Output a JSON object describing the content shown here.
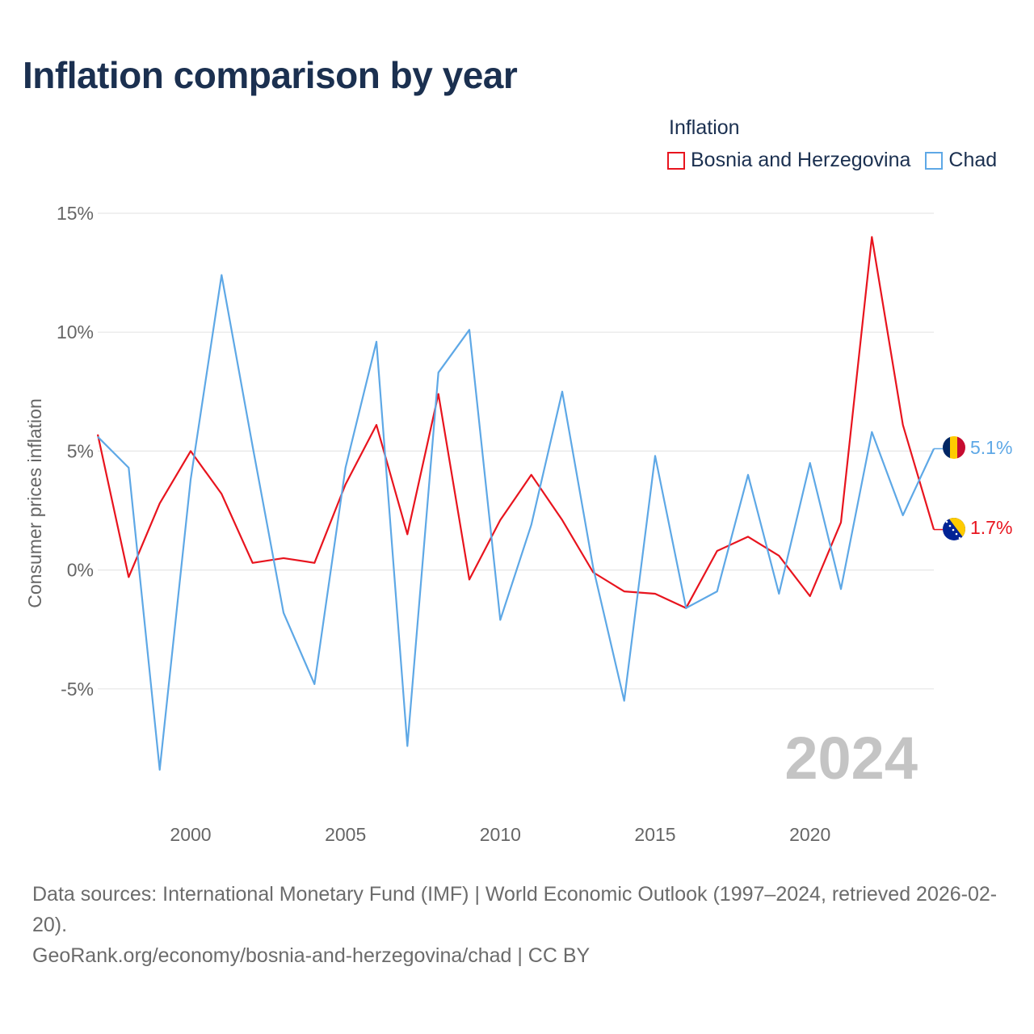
{
  "chart_data": {
    "type": "line",
    "title": "Inflation comparison by year",
    "legend_title": "Inflation",
    "ylabel": "Consumer prices inflation",
    "xlabel": "",
    "x": [
      1997,
      1998,
      1999,
      2000,
      2001,
      2002,
      2003,
      2004,
      2005,
      2006,
      2007,
      2008,
      2009,
      2010,
      2011,
      2012,
      2013,
      2014,
      2015,
      2016,
      2017,
      2018,
      2019,
      2020,
      2021,
      2022,
      2023,
      2024
    ],
    "xlim": [
      1997,
      2024
    ],
    "ylim": [
      -10,
      15
    ],
    "x_ticks": [
      2000,
      2005,
      2010,
      2015,
      2020
    ],
    "x_tick_labels": [
      "2000",
      "2005",
      "2010",
      "2015",
      "2020"
    ],
    "y_ticks": [
      -5,
      0,
      5,
      10,
      15
    ],
    "y_tick_labels": [
      "-5%",
      "0%",
      "5%",
      "10%",
      "15%"
    ],
    "year_watermark": "2024",
    "series": [
      {
        "name": "Bosnia and Herzegovina",
        "color": "#e8141e",
        "flag_icon": "bosnia-flag-icon",
        "end_label": "1.7%",
        "values": [
          5.7,
          -0.3,
          2.8,
          5.0,
          3.2,
          0.3,
          0.5,
          0.3,
          3.6,
          6.1,
          1.5,
          7.4,
          -0.4,
          2.1,
          4.0,
          2.1,
          -0.1,
          -0.9,
          -1.0,
          -1.6,
          0.8,
          1.4,
          0.6,
          -1.1,
          2.0,
          14.0,
          6.1,
          1.7
        ]
      },
      {
        "name": "Chad",
        "color": "#5ea8e6",
        "flag_icon": "chad-flag-icon",
        "end_label": "5.1%",
        "values": [
          5.6,
          4.3,
          -8.4,
          3.8,
          12.4,
          5.2,
          -1.8,
          -4.8,
          4.3,
          9.6,
          -7.4,
          8.3,
          10.1,
          -2.1,
          1.9,
          7.5,
          0.1,
          -5.5,
          4.8,
          -1.6,
          -0.9,
          4.0,
          -1.0,
          4.5,
          -0.8,
          5.8,
          2.3,
          5.1
        ]
      }
    ]
  },
  "footer": {
    "sources": "Data sources: International Monetary Fund (IMF) | World Economic Outlook (1997–2024, retrieved 2026-02-20).",
    "url": "GeoRank.org/economy/bosnia-and-herzegovina/chad | CC BY"
  }
}
